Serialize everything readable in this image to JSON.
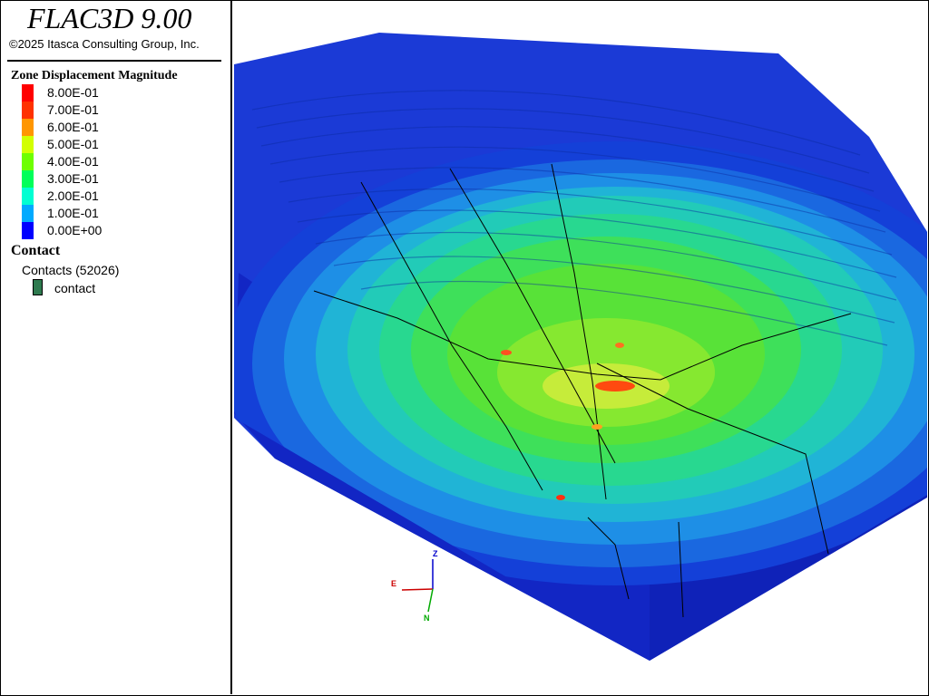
{
  "app": {
    "title": "FLAC3D 9.00",
    "copyright": "©2025 Itasca Consulting Group, Inc."
  },
  "colorbar": {
    "title": "Zone Displacement Magnitude",
    "entries": [
      {
        "label": "8.00E-01",
        "color": "#ff0000"
      },
      {
        "label": "7.00E-01",
        "color": "#ff3200"
      },
      {
        "label": "6.00E-01",
        "color": "#ff9600"
      },
      {
        "label": "5.00E-01",
        "color": "#d2ff00"
      },
      {
        "label": "4.00E-01",
        "color": "#6eff00"
      },
      {
        "label": "3.00E-01",
        "color": "#00ff5a"
      },
      {
        "label": "2.00E-01",
        "color": "#00ffd2"
      },
      {
        "label": "1.00E-01",
        "color": "#00aaff"
      },
      {
        "label": "0.00E+00",
        "color": "#0000ff"
      }
    ]
  },
  "contact_legend": {
    "title": "Contact",
    "group": "Contacts (52026)",
    "item": "contact",
    "item_color": "#2e7a4f"
  },
  "axes": {
    "z": "Z",
    "e": "E",
    "n": "N",
    "z_color": "#0000cc",
    "e_color": "#cc0000",
    "n_color": "#00aa00"
  }
}
